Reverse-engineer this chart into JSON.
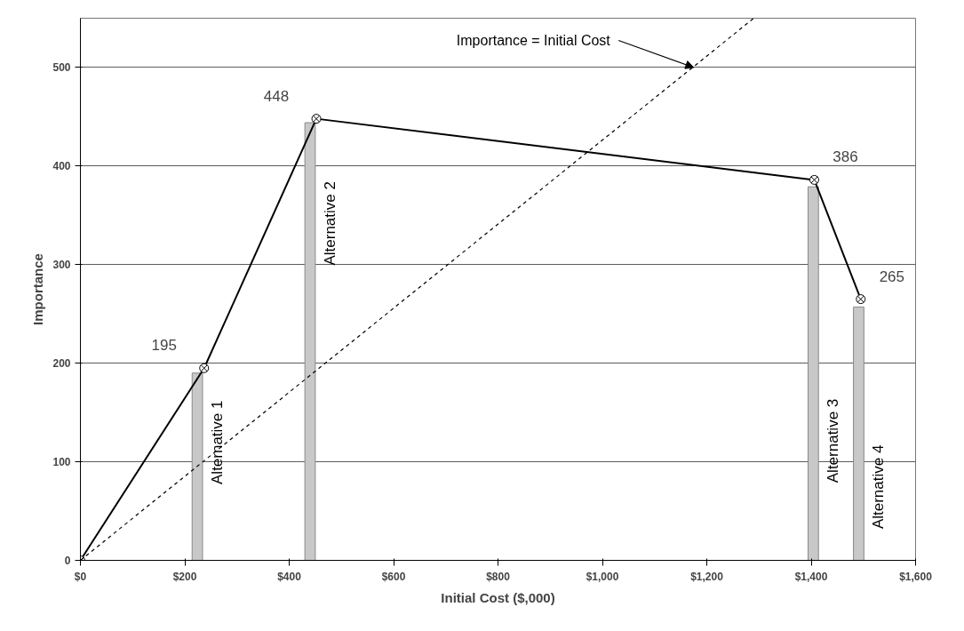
{
  "chart_data": {
    "type": "line",
    "xlabel": "Initial Cost ($,000)",
    "ylabel": "Importance",
    "xlim": [
      0,
      1600
    ],
    "ylim": [
      0,
      550
    ],
    "xticks": [
      {
        "value": 0,
        "label": "$0"
      },
      {
        "value": 200,
        "label": "$200"
      },
      {
        "value": 400,
        "label": "$400"
      },
      {
        "value": 600,
        "label": "$600"
      },
      {
        "value": 800,
        "label": "$800"
      },
      {
        "value": 1000,
        "label": "$1,000"
      },
      {
        "value": 1200,
        "label": "$1,200"
      },
      {
        "value": 1400,
        "label": "$1,400"
      },
      {
        "value": 1600,
        "label": "$1,600"
      }
    ],
    "yticks": [
      0,
      100,
      200,
      300,
      400,
      500
    ],
    "grid": "y",
    "marker": "cross",
    "series": [
      {
        "type": "bar",
        "color": "#c8c8c8",
        "x": [
          224,
          440,
          1404,
          1491
        ],
        "values": [
          190,
          444,
          379,
          257
        ]
      },
      {
        "color": "#000000",
        "x": [
          0,
          237,
          452,
          1406,
          1495
        ],
        "values": [
          0,
          195,
          448,
          386,
          265
        ],
        "value_labels": [
          null,
          "195",
          "448",
          "386",
          "265"
        ]
      },
      {
        "color": "#000000",
        "line_style": "dashed",
        "marker": "none",
        "x": [
          0,
          1290
        ],
        "values": [
          0,
          550
        ]
      }
    ],
    "annotations": [
      {
        "text": "Importance = Initial Cost",
        "x": 1175,
        "y": 500
      },
      "Alternative 1",
      "Alternative 2",
      "Alternative 3",
      "Alternative 4"
    ]
  }
}
